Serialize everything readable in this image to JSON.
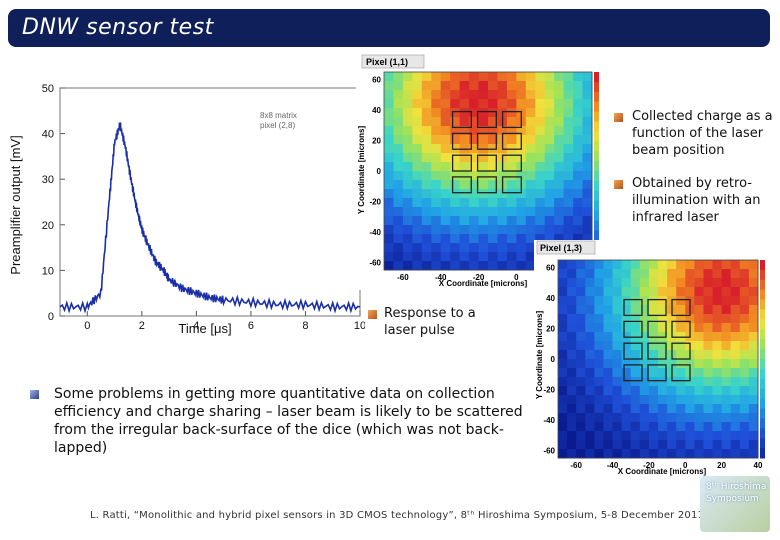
{
  "slide": {
    "title": "DNW sensor test",
    "footer": "L. Ratti, “Monolithic and hybrid pixel sensors in 3D CMOS technology”, 8ᵗʰ Hiroshima Symposium, 5-8 December 2011",
    "logo": {
      "line1": "8ᵗʰ Hiroshima",
      "line2": "Symposium"
    }
  },
  "notes": {
    "collected_charge": "Collected charge as a function of the laser beam position",
    "retro_illumination": "Obtained by retro-illumination with an infrared laser",
    "laser_pulse": "Response to a laser pulse",
    "problems": "Some problems in getting more quantitative data on collection efficiency and charge sharing – laser beam is likely to be scattered from the irregular back-surface of the dice (which was not back-lapped)"
  },
  "colors": {
    "title_bg": "#0f1f5a",
    "trace": "#1a2ea8",
    "bullet_orange": "#d77a2c",
    "bullet_blue": "#3a55a8"
  },
  "chart_data": [
    {
      "type": "line",
      "title": "",
      "annotation": [
        "8x8 matrix",
        "pixel (2,8)"
      ],
      "xlabel": "Time [μs]",
      "ylabel": "Preamplifier output [mV]",
      "xlim": [
        -1,
        10
      ],
      "ylim": [
        0,
        50
      ],
      "xticks": [
        "0",
        "2",
        "4",
        "6",
        "8",
        "10"
      ],
      "yticks": [
        "0",
        "10",
        "20",
        "30",
        "40",
        "50"
      ],
      "series": [
        {
          "x": [
            -1,
            0,
            0.5,
            0.8,
            1.0,
            1.2,
            1.4,
            1.6,
            1.8,
            2.0,
            2.2,
            2.5,
            2.8,
            3.0,
            3.5,
            4.0,
            4.5,
            5.0,
            6.0,
            7.0,
            8.0,
            9.0,
            10.0
          ],
          "y": [
            2,
            2,
            5,
            25,
            38,
            42,
            37,
            30,
            24,
            19,
            16,
            12,
            10,
            8,
            6,
            5,
            4,
            3.5,
            3,
            2.5,
            2.5,
            2,
            2
          ]
        }
      ]
    },
    {
      "type": "heatmap",
      "title": "Pixel (1,1)",
      "xlabel": "X Coordinate [microns]",
      "ylabel": "Y Coordinate [microns]",
      "xticks": [
        "-60",
        "-40",
        "-20",
        "0",
        "20"
      ],
      "yticks": [
        "60",
        "40",
        "20",
        "0",
        "-20",
        "-40",
        "-60"
      ],
      "hotspot": {
        "x": -20,
        "y": 45
      }
    },
    {
      "type": "heatmap",
      "title": "Pixel (1,3)",
      "xlabel": "X Coordinate [microns]",
      "ylabel": "Y Coordinate [microns]",
      "xticks": [
        "-60",
        "-40",
        "-20",
        "0",
        "20",
        "40"
      ],
      "yticks": [
        "60",
        "40",
        "20",
        "0",
        "-20",
        "-40",
        "-60"
      ],
      "hotspot": {
        "x": 20,
        "y": 45
      }
    }
  ]
}
